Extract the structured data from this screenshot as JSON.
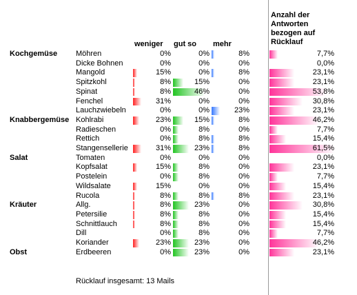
{
  "header": {
    "weniger": "weniger",
    "gut_so": "gut so",
    "mehr": "mehr",
    "anzahl": "Anzahl der Antworten bezogen auf Rücklauf"
  },
  "groups": [
    {
      "label": "Kochgemüse",
      "rows": [
        [
          "Möhren",
          "0%",
          "0%",
          "8%",
          "7,7%"
        ],
        [
          "Dicke Bohnen",
          "0%",
          "0%",
          "0%",
          "0,0%"
        ],
        [
          "Mangold",
          "15%",
          "0%",
          "8%",
          "23,1%"
        ],
        [
          "Spitzkohl",
          "8%",
          "15%",
          "0%",
          "23,1%"
        ],
        [
          "Spinat",
          "8%",
          "46%",
          "0%",
          "53,8%"
        ],
        [
          "Fenchel",
          "31%",
          "0%",
          "0%",
          "30,8%"
        ],
        [
          "Lauchzwiebeln",
          "0%",
          "0%",
          "23%",
          "23,1%"
        ]
      ]
    },
    {
      "label": "Knabbergemüse",
      "rows": [
        [
          "Kohlrabi",
          "23%",
          "15%",
          "8%",
          "46,2%"
        ],
        [
          "Radieschen",
          "0%",
          "8%",
          "0%",
          "7,7%"
        ],
        [
          "Rettich",
          "0%",
          "8%",
          "8%",
          "15,4%"
        ],
        [
          "Stangensellerie",
          "31%",
          "23%",
          "8%",
          "61,5%"
        ]
      ]
    },
    {
      "label": "Salat",
      "rows": [
        [
          "Tomaten",
          "0%",
          "0%",
          "0%",
          "0,0%"
        ],
        [
          "Kopfsalat",
          "15%",
          "8%",
          "0%",
          "23,1%"
        ],
        [
          "Postelein",
          "0%",
          "8%",
          "0%",
          "7,7%"
        ],
        [
          "Wildsalate",
          "15%",
          "0%",
          "0%",
          "15,4%"
        ],
        [
          "Rucola",
          "8%",
          "8%",
          "8%",
          "23,1%"
        ]
      ]
    },
    {
      "label": "Kräuter",
      "rows": [
        [
          "Allg.",
          "8%",
          "23%",
          "0%",
          "30,8%"
        ],
        [
          "Petersilie",
          "8%",
          "8%",
          "0%",
          "15,4%"
        ],
        [
          "Schnittlauch",
          "8%",
          "8%",
          "0%",
          "15,4%"
        ],
        [
          "Dill",
          "0%",
          "8%",
          "0%",
          "7,7%"
        ],
        [
          "Koriander",
          "23%",
          "23%",
          "0%",
          "46,2%"
        ]
      ]
    },
    {
      "label": "Obst",
      "rows": [
        [
          "Erdbeeren",
          "0%",
          "23%",
          "0%",
          "23,1%"
        ]
      ]
    }
  ],
  "footer": "Rücklauf insgesamt: 13 Mails"
}
